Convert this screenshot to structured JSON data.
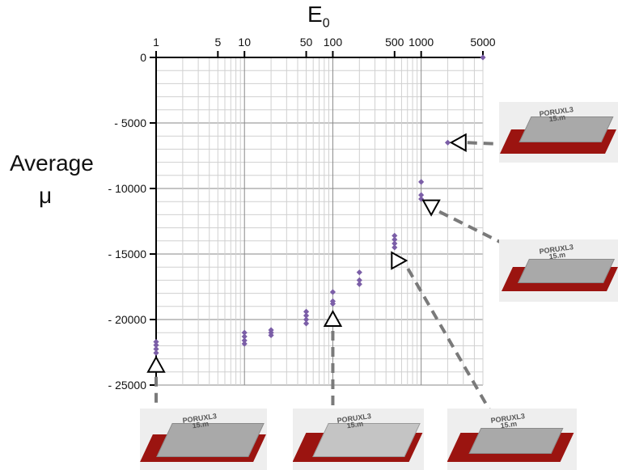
{
  "chart_data": {
    "type": "scatter",
    "title": "",
    "xlabel": "E",
    "xlabel_sub": "0",
    "ylabel_line1": "Average",
    "ylabel_line2": "μ",
    "xscale": "log",
    "xlim": [
      1,
      5000
    ],
    "ylim": [
      -25000,
      0
    ],
    "xticks": [
      1,
      5,
      10,
      50,
      100,
      500,
      1000,
      5000
    ],
    "xtick_labels": [
      "1",
      "5",
      "10",
      "50",
      "100",
      "500",
      "1000",
      "5000"
    ],
    "yticks": [
      0,
      -5000,
      -10000,
      -15000,
      -20000,
      -25000
    ],
    "ytick_labels": [
      "0",
      "- 5000",
      "- 10000",
      "- 15000",
      "- 20000",
      "- 25000"
    ],
    "grid": true,
    "point_color": "#7b5ea7",
    "series": [
      {
        "values": [
          {
            "x": 1,
            "y": -21700
          },
          {
            "x": 1,
            "y": -21950
          },
          {
            "x": 1,
            "y": -22250
          },
          {
            "x": 1,
            "y": -22550
          },
          {
            "x": 10,
            "y": -21000
          },
          {
            "x": 10,
            "y": -21300
          },
          {
            "x": 10,
            "y": -21600
          },
          {
            "x": 10,
            "y": -21850
          },
          {
            "x": 20,
            "y": -20800
          },
          {
            "x": 20,
            "y": -21000
          },
          {
            "x": 20,
            "y": -21200
          },
          {
            "x": 50,
            "y": -19400
          },
          {
            "x": 50,
            "y": -19700
          },
          {
            "x": 50,
            "y": -20000
          },
          {
            "x": 50,
            "y": -20300
          },
          {
            "x": 100,
            "y": -17900
          },
          {
            "x": 100,
            "y": -18600
          },
          {
            "x": 100,
            "y": -18800
          },
          {
            "x": 200,
            "y": -16400
          },
          {
            "x": 200,
            "y": -17000
          },
          {
            "x": 200,
            "y": -17300
          },
          {
            "x": 500,
            "y": -13600
          },
          {
            "x": 500,
            "y": -13900
          },
          {
            "x": 500,
            "y": -14200
          },
          {
            "x": 500,
            "y": -14500
          },
          {
            "x": 1000,
            "y": -9500
          },
          {
            "x": 1000,
            "y": -10500
          },
          {
            "x": 1000,
            "y": -10800
          },
          {
            "x": 2000,
            "y": -6500
          },
          {
            "x": 5000,
            "y": 0
          }
        ]
      }
    ],
    "markers": [
      {
        "x": 1,
        "y": -23500,
        "direction": "up"
      },
      {
        "x": 100,
        "y": -20000,
        "direction": "up"
      },
      {
        "x": 550,
        "y": -15500,
        "direction": "right"
      },
      {
        "x": 1300,
        "y": -11400,
        "direction": "down"
      },
      {
        "x": 2700,
        "y": -6500,
        "direction": "left"
      }
    ]
  },
  "thumbnail_label_line1": "PORUXL3",
  "thumbnail_label_line2": "15.m"
}
